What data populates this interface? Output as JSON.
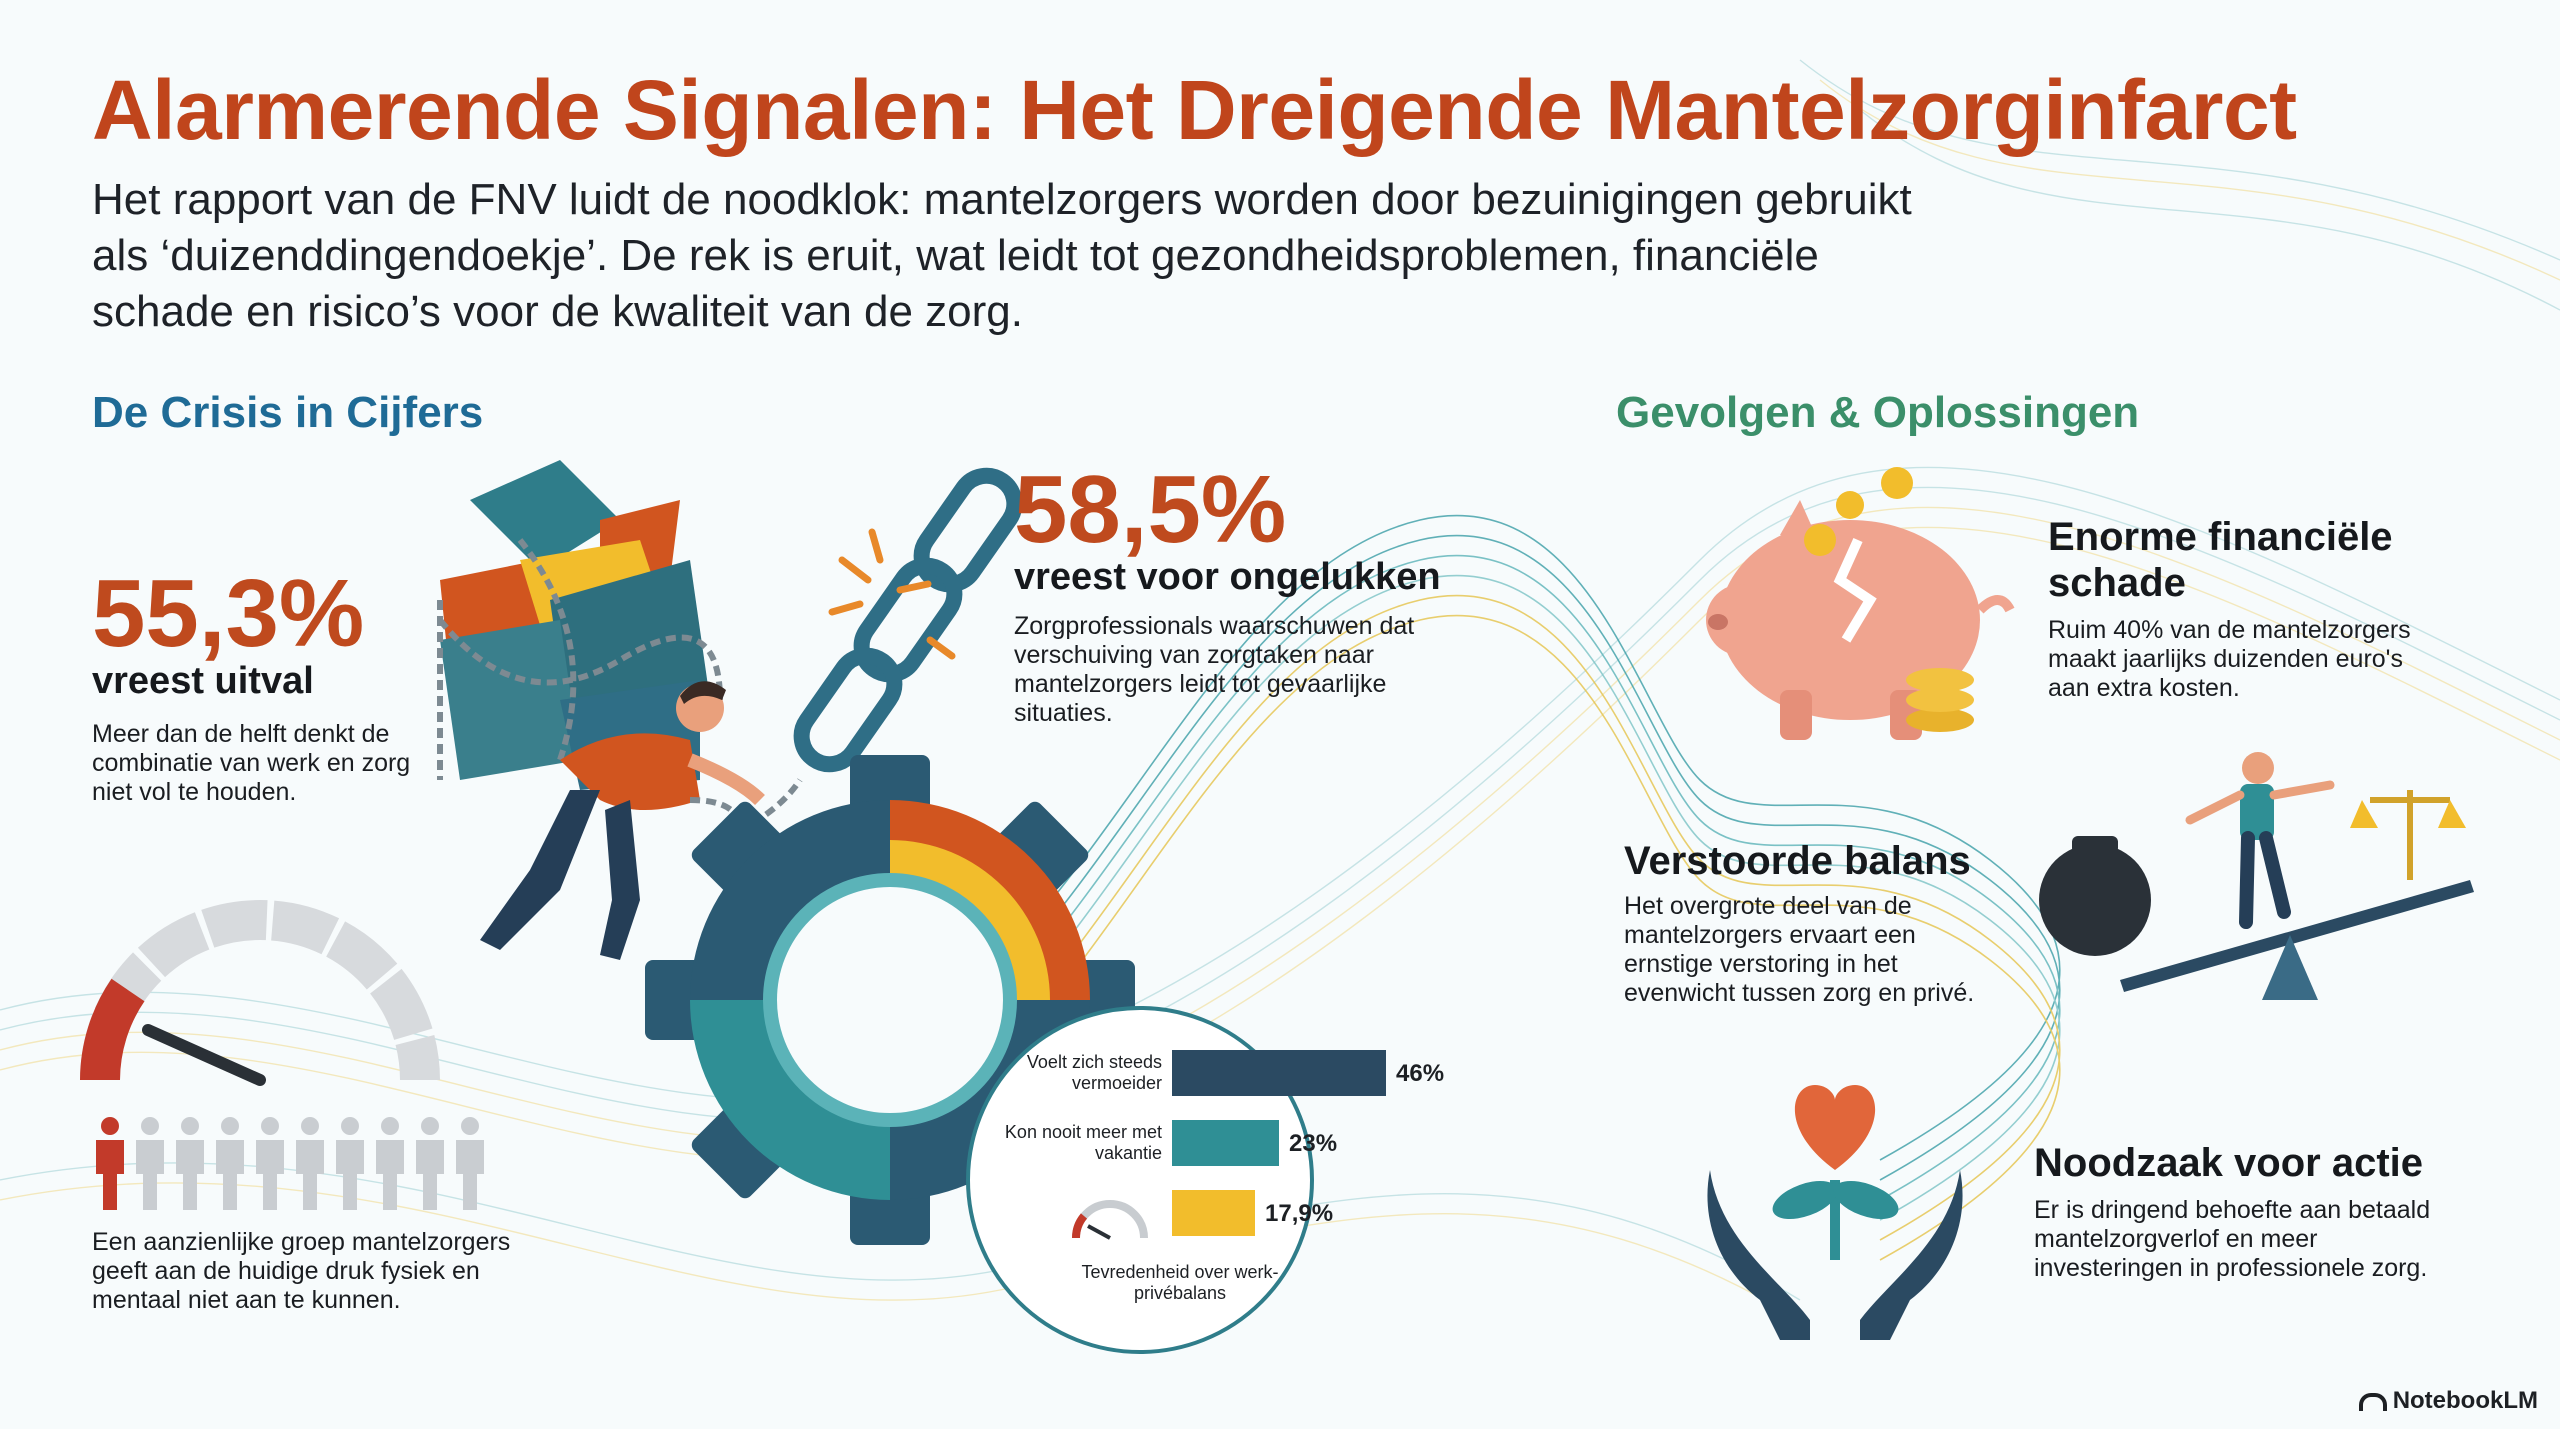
{
  "header": {
    "title": "Alarmerende Signalen: Het Dreigende Mantelzorginfarct",
    "intro": "Het rapport van de FNV luidt de noodklok: mantelzorgers worden door bezuinigingen gebruikt als ‘duizenddingendoekje’. De rek is eruit, wat leidt tot gezondheidsproblemen, financiële schade en risico’s voor de kwaliteit van de zorg."
  },
  "left_section": {
    "heading": "De Crisis in Cijfers",
    "stat1": {
      "value": "55,3%",
      "label": "vreest uitval",
      "text": "Meer dan de helft denkt de combinatie van werk en zorg niet vol te houden."
    },
    "stat2": {
      "value": "58,5%",
      "label": "vreest voor ongelukken",
      "text": "Zorgprofessionals waarschuwen dat verschuiving van zorgtaken naar mantelzorgers leidt tot gevaarlijke situaties."
    },
    "group_text": "Een aanzienlijke groep mantelzorgers geeft aan de huidige druk fysiek en mentaal niet aan te kunnen.",
    "people": {
      "total": 10,
      "highlighted": 1
    },
    "gauge_level": 0.15
  },
  "bars": [
    {
      "label": "Voelt zich steeds vermoeider",
      "value": "46%",
      "fraction": 0.46,
      "color": "#2b4a62"
    },
    {
      "label": "Kon nooit meer met vakantie",
      "value": "23%",
      "fraction": 0.23,
      "color": "#2f8f95"
    },
    {
      "label": "",
      "value": "17,9%",
      "fraction": 0.179,
      "color": "#f2bd2c"
    }
  ],
  "bars_caption": "Tevredenheid over werk-privébalans",
  "right_section": {
    "heading": "Gevolgen & Oplossingen",
    "items": [
      {
        "title": "Enorme financiële schade",
        "text": "Ruim 40% van de mantelzorgers maakt jaarlijks duizenden euro's aan extra kosten."
      },
      {
        "title": "Verstoorde balans",
        "text": "Het overgrote deel van de mantelzorgers ervaart een ernstige verstoring in het evenwicht tussen zorg en privé."
      },
      {
        "title": "Noodzaak voor actie",
        "text": "Er is dringend behoefte aan betaald mantelzorgverlof en meer investeringen in professionele zorg."
      }
    ]
  },
  "footer": {
    "brand": "NotebookLM"
  },
  "colors": {
    "title": "#c0451c",
    "heading_blue": "#1f6b96",
    "heading_green": "#3b8f6a",
    "orange": "#d1551f",
    "teal": "#2f8f95",
    "navy": "#2b4a62",
    "yellow": "#f2bd2c"
  }
}
